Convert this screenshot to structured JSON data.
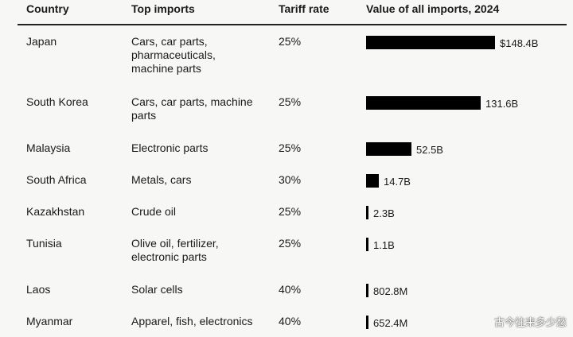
{
  "chart_data": {
    "type": "table",
    "columns": [
      "Country",
      "Top imports",
      "Tariff rate",
      "Value of all imports, 2024"
    ],
    "rows": [
      {
        "country": "Japan",
        "imports": [
          "Cars, car parts,",
          "pharmaceuticals,",
          "machine parts"
        ],
        "tariff": "25%",
        "value": 148.4,
        "label": "$148.4B"
      },
      {
        "country": "South Korea",
        "imports": [
          "Cars, car parts, machine",
          "parts"
        ],
        "tariff": "25%",
        "value": 131.6,
        "label": "131.6B"
      },
      {
        "country": "Malaysia",
        "imports": [
          "Electronic parts"
        ],
        "tariff": "25%",
        "value": 52.5,
        "label": "52.5B"
      },
      {
        "country": "South Africa",
        "imports": [
          "Metals, cars"
        ],
        "tariff": "30%",
        "value": 14.7,
        "label": "14.7B"
      },
      {
        "country": "Kazakhstan",
        "imports": [
          "Crude oil"
        ],
        "tariff": "25%",
        "value": 2.3,
        "label": "2.3B"
      },
      {
        "country": "Tunisia",
        "imports": [
          "Olive oil, fertilizer,",
          "electronic parts"
        ],
        "tariff": "25%",
        "value": 1.1,
        "label": "1.1B"
      },
      {
        "country": "Laos",
        "imports": [
          "Solar cells"
        ],
        "tariff": "40%",
        "value": 0.8028,
        "label": "802.8M"
      },
      {
        "country": "Myanmar",
        "imports": [
          "Apparel, fish, electronics"
        ],
        "tariff": "40%",
        "value": 0.6524,
        "label": "652.4M"
      }
    ],
    "value_unit": "USD billions"
  },
  "watermark": "古今往来多少愁"
}
